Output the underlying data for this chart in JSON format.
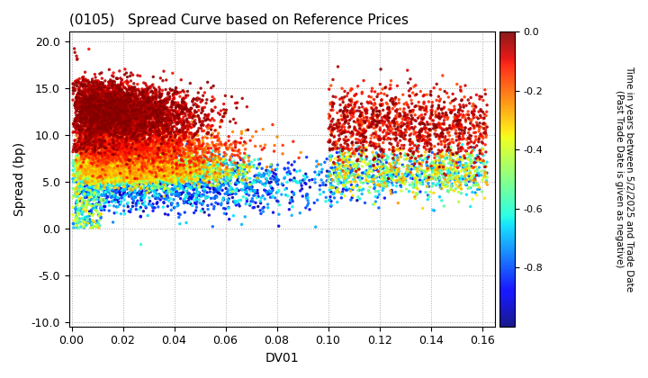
{
  "title": "(0105)   Spread Curve based on Reference Prices",
  "xlabel": "DV01",
  "ylabel": "Spread (bp)",
  "colorbar_label": "Time in years between 5/2/2025 and Trade Date\n(Past Trade Date is given as negative)",
  "xlim": [
    -0.001,
    0.165
  ],
  "ylim": [
    -10.5,
    21.0
  ],
  "xticks": [
    0.0,
    0.02,
    0.04,
    0.06,
    0.08,
    0.1,
    0.12,
    0.14,
    0.16
  ],
  "yticks": [
    -10.0,
    -5.0,
    0.0,
    5.0,
    10.0,
    15.0,
    20.0
  ],
  "cmap": "jet",
  "clim": [
    -1.0,
    0.0
  ],
  "cticks": [
    0.0,
    -0.2,
    -0.4,
    -0.6,
    -0.8
  ],
  "marker_size": 6,
  "background_color": "#ffffff",
  "grid_color": "#aaaaaa",
  "seed": 42
}
